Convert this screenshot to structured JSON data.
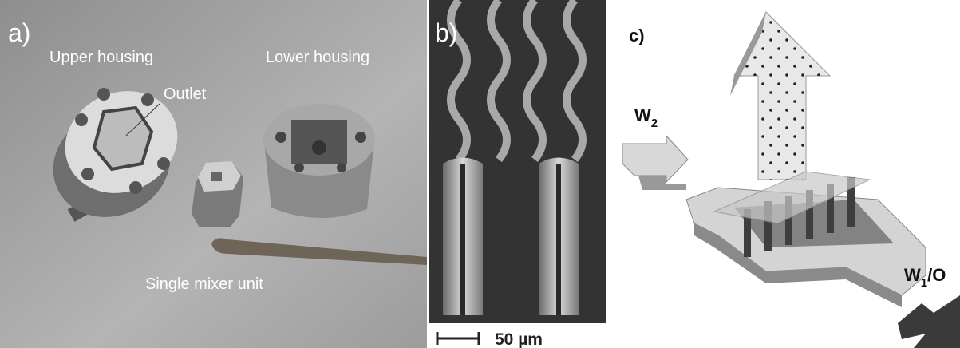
{
  "panels": [
    {
      "label": "a)",
      "texts": [
        "Upper housing",
        "Lower housing",
        "Outlet",
        "Single mixer unit"
      ]
    },
    {
      "label": "b)",
      "scale_bar": "50 µm"
    },
    {
      "label": "c)",
      "flows": [
        {
          "base": "W",
          "sub": "2"
        },
        {
          "base": "W",
          "sub": "1",
          "rest": "/O"
        }
      ]
    }
  ]
}
